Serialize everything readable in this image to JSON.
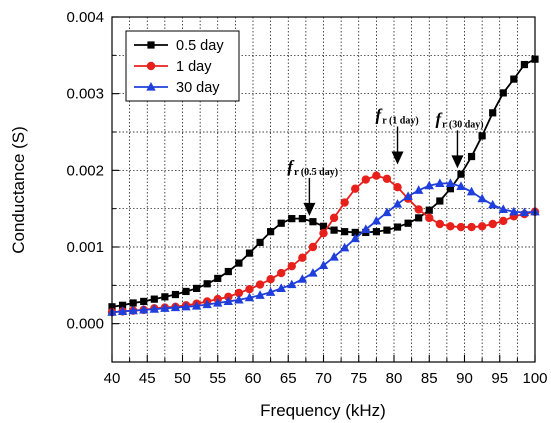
{
  "chart_data": {
    "type": "line",
    "xlabel": "Frequency (kHz)",
    "ylabel": "Conductance (S)",
    "xlim": [
      40,
      100
    ],
    "ylim": [
      -0.0005,
      0.004
    ],
    "xticks": [
      "40",
      "45",
      "50",
      "55",
      "60",
      "65",
      "70",
      "75",
      "80",
      "85",
      "90",
      "95",
      "100"
    ],
    "yticks": [
      "0.000",
      "0.001",
      "0.002",
      "0.003",
      "0.004"
    ],
    "grid": "dotted",
    "legend_position": "top-left",
    "x": [
      40,
      41.5,
      43,
      44.5,
      46,
      47.5,
      49,
      50.5,
      52,
      53.5,
      55,
      56.5,
      58,
      59.5,
      61,
      62.5,
      64,
      65.5,
      67,
      68.5,
      70,
      71.5,
      73,
      74.5,
      76,
      77.5,
      79,
      80.5,
      82,
      83.5,
      85,
      86.5,
      88,
      89.5,
      91,
      92.5,
      94,
      95.5,
      97,
      98.5,
      100
    ],
    "series": [
      {
        "name": "0.5 day",
        "color": "#000000",
        "marker": "square",
        "values": [
          0.00022,
          0.00024,
          0.00027,
          0.00029,
          0.00032,
          0.00035,
          0.00038,
          0.00042,
          0.00046,
          0.00052,
          0.00059,
          0.00068,
          0.00079,
          0.00092,
          0.00106,
          0.0012,
          0.00131,
          0.00137,
          0.00137,
          0.00133,
          0.00127,
          0.00122,
          0.0012,
          0.00119,
          0.00119,
          0.0012,
          0.00122,
          0.00126,
          0.00131,
          0.00138,
          0.00148,
          0.0016,
          0.00176,
          0.00195,
          0.00218,
          0.00245,
          0.00275,
          0.00301,
          0.00319,
          0.00338,
          0.00345
        ]
      },
      {
        "name": "1 day",
        "color": "#e8201c",
        "marker": "circle",
        "values": [
          0.00015,
          0.00016,
          0.00017,
          0.00018,
          0.0002,
          0.00021,
          0.00022,
          0.00024,
          0.00026,
          0.00029,
          0.00032,
          0.00035,
          0.0004,
          0.00045,
          0.00051,
          0.00058,
          0.00066,
          0.00075,
          0.00086,
          0.001,
          0.00118,
          0.00138,
          0.00158,
          0.00176,
          0.00188,
          0.00193,
          0.00189,
          0.00178,
          0.00163,
          0.00149,
          0.00138,
          0.0013,
          0.00127,
          0.00126,
          0.00126,
          0.00127,
          0.0013,
          0.00134,
          0.0014,
          0.00143,
          0.00146
        ]
      },
      {
        "name": "30 day",
        "color": "#1f3fdc",
        "marker": "triangle",
        "values": [
          0.00015,
          0.00016,
          0.00017,
          0.00018,
          0.00019,
          0.0002,
          0.00021,
          0.00022,
          0.00023,
          0.00025,
          0.00027,
          0.00029,
          0.00031,
          0.00034,
          0.00037,
          0.00041,
          0.00046,
          0.00051,
          0.00058,
          0.00066,
          0.00076,
          0.00087,
          0.00099,
          0.00111,
          0.00123,
          0.00134,
          0.00145,
          0.00156,
          0.00166,
          0.00174,
          0.0018,
          0.00183,
          0.00183,
          0.00179,
          0.00172,
          0.00163,
          0.00155,
          0.00149,
          0.00146,
          0.00145,
          0.00146
        ]
      }
    ],
    "annotations": [
      {
        "main": "f",
        "sub": "r (0.5 day)",
        "x": 68,
        "arrow_tip_y": 0.00138
      },
      {
        "main": "f",
        "sub": "r (1 day)",
        "x": 80.5,
        "arrow_tip_y": 0.00205
      },
      {
        "main": "f",
        "sub": "r (30 day)",
        "x": 89,
        "arrow_tip_y": 0.002
      }
    ]
  }
}
